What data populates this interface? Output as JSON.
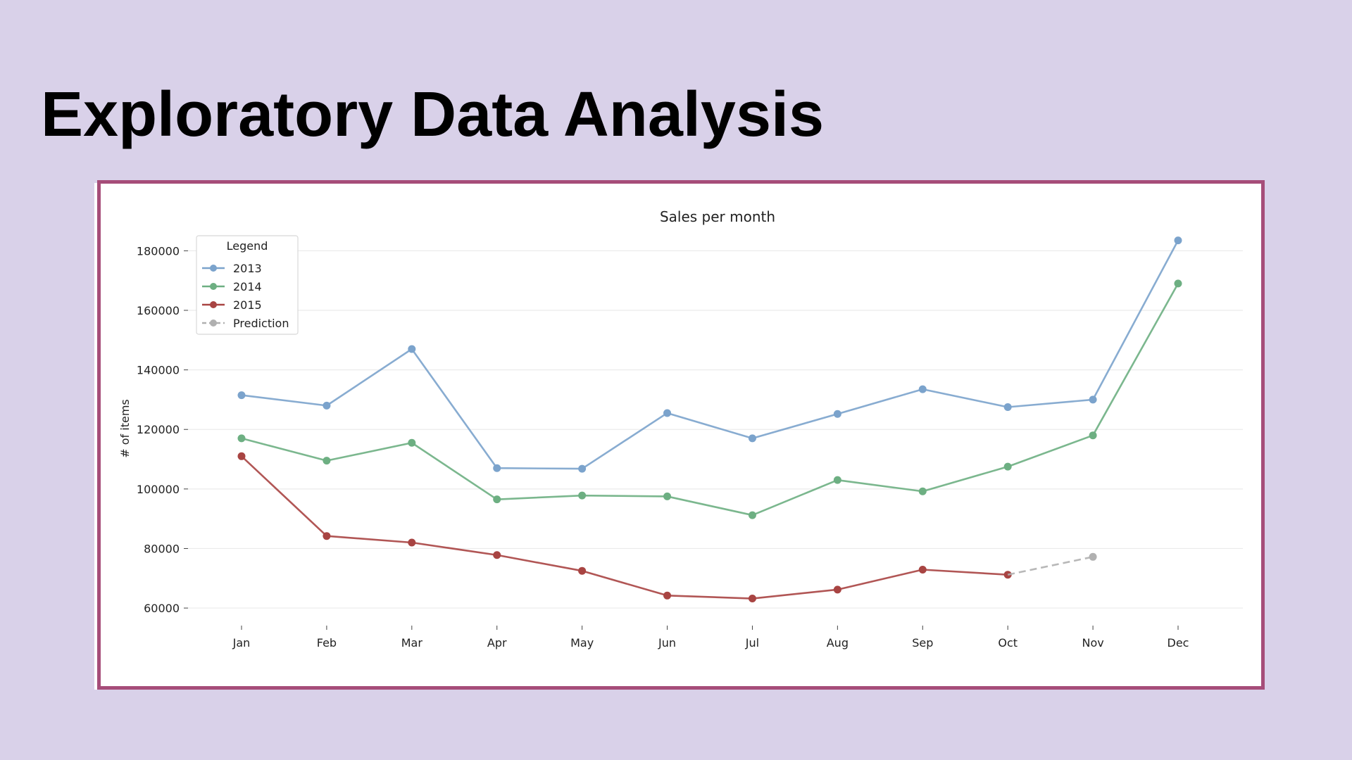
{
  "slide": {
    "title": "Exploratory Data Analysis"
  },
  "colors": {
    "background": "#d9d1e9",
    "frame_border": "#a64d79",
    "series_2013": "#7ba3cc",
    "series_2014": "#6daf82",
    "series_2015": "#a84442",
    "prediction": "#b0b0b0"
  },
  "chart_data": {
    "type": "line",
    "title": "Sales per month",
    "xlabel": "",
    "ylabel": "# of items",
    "categories": [
      "Jan",
      "Feb",
      "Mar",
      "Apr",
      "May",
      "Jun",
      "Jul",
      "Aug",
      "Sep",
      "Oct",
      "Nov",
      "Dec"
    ],
    "yticks": [
      60000,
      80000,
      100000,
      120000,
      140000,
      160000,
      180000
    ],
    "ytick_labels": [
      "60000",
      "80000",
      "100000",
      "120000",
      "140000",
      "160000",
      "180000"
    ],
    "ylim": [
      56000,
      186000
    ],
    "grid": "horizontal",
    "legend": {
      "title": "Legend",
      "placement": "top-left",
      "entries": [
        "2013",
        "2014",
        "2015",
        "Prediction"
      ]
    },
    "series": [
      {
        "name": "2013",
        "color": "#7ba3cc",
        "style": "solid",
        "values": [
          131500,
          128000,
          147000,
          107000,
          106800,
          125500,
          117000,
          125200,
          133500,
          127500,
          130000,
          183500
        ]
      },
      {
        "name": "2014",
        "color": "#6daf82",
        "style": "solid",
        "values": [
          117000,
          109500,
          115500,
          96500,
          97800,
          97500,
          91200,
          103000,
          99200,
          107500,
          118000,
          169000
        ]
      },
      {
        "name": "2015",
        "color": "#a84442",
        "style": "solid",
        "values": [
          111000,
          84200,
          82000,
          77800,
          72500,
          64200,
          63200,
          66200,
          72900,
          71200,
          null,
          null
        ]
      },
      {
        "name": "Prediction",
        "color": "#b0b0b0",
        "style": "dashed",
        "values": [
          null,
          null,
          null,
          null,
          null,
          null,
          null,
          null,
          null,
          71200,
          77200,
          null
        ]
      }
    ]
  }
}
